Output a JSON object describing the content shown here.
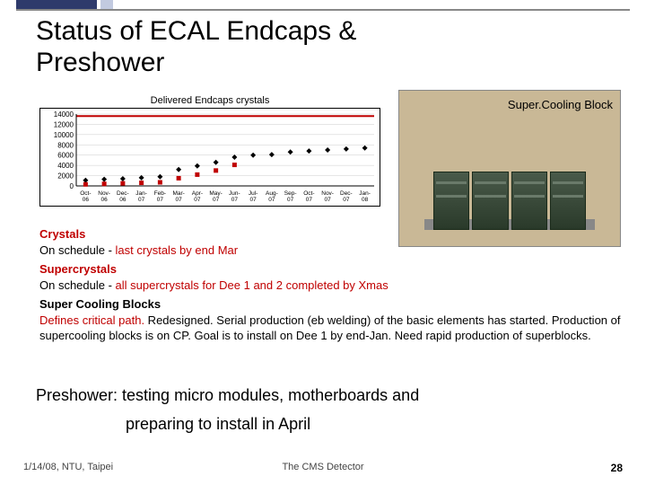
{
  "title_line1": "Status of ECAL Endcaps &",
  "title_line2": "Preshower",
  "chart": {
    "title": "Delivered Endcaps crystals",
    "y_ticks": [
      0,
      2000,
      4000,
      6000,
      8000,
      10000,
      12000,
      14000,
      13598
    ],
    "x_labels": [
      "Oct-06",
      "Nov-06",
      "Dec-06",
      "Jan-07",
      "Feb-07",
      "Mar-07",
      "Apr-07",
      "May-07",
      "Jun-07",
      "Jul-07",
      "Aug-07",
      "Sep-07",
      "Oct-07",
      "Nov-07",
      "Dec-07",
      "Jan-08"
    ],
    "series": [
      {
        "color": "#000000",
        "marker": "diamond",
        "values": [
          1100,
          1300,
          1400,
          1600,
          1800,
          3200,
          3900,
          4600,
          5600,
          6000,
          6100,
          6600,
          6800,
          7000,
          7200,
          7400
        ]
      },
      {
        "color": "#c00000",
        "marker": "square",
        "values": [
          300,
          400,
          500,
          600,
          700,
          1500,
          2200,
          3000,
          4100,
          null,
          null,
          null,
          null,
          null,
          null,
          null
        ]
      }
    ],
    "target_line": {
      "y": 13598,
      "color": "#c00000",
      "width": 2
    },
    "ylim": [
      0,
      14000
    ],
    "grid_color": "#cccccc",
    "axis_color": "#000000",
    "tick_fontsize": 8
  },
  "photo": {
    "label": "Super.Cooling Block",
    "background": "#c9b896"
  },
  "sections": {
    "crystals": {
      "header": "Crystals",
      "text_prefix": "On schedule - ",
      "text_hl": "last crystals by end Mar"
    },
    "supercrystals": {
      "header": "Supercrystals",
      "text_prefix": "On schedule - ",
      "text_hl": "all supercrystals for Dee 1 and 2 completed by Xmas"
    },
    "cooling": {
      "header": "Super Cooling Blocks",
      "text_prefix_hl": "Defines critical path.",
      "text_rest": " Redesigned. Serial production (eb welding) of the basic elements has started. Production of supercooling blocks is on CP. Goal is to install on Dee 1 by end-Jan. Need rapid production of superblocks."
    }
  },
  "preshower_line1": "Preshower:  testing micro modules, motherboards and",
  "preshower_line2": "preparing to install in April",
  "footer": {
    "left": "1/14/08, NTU, Taipei",
    "center": "The CMS Detector",
    "page": "28"
  }
}
